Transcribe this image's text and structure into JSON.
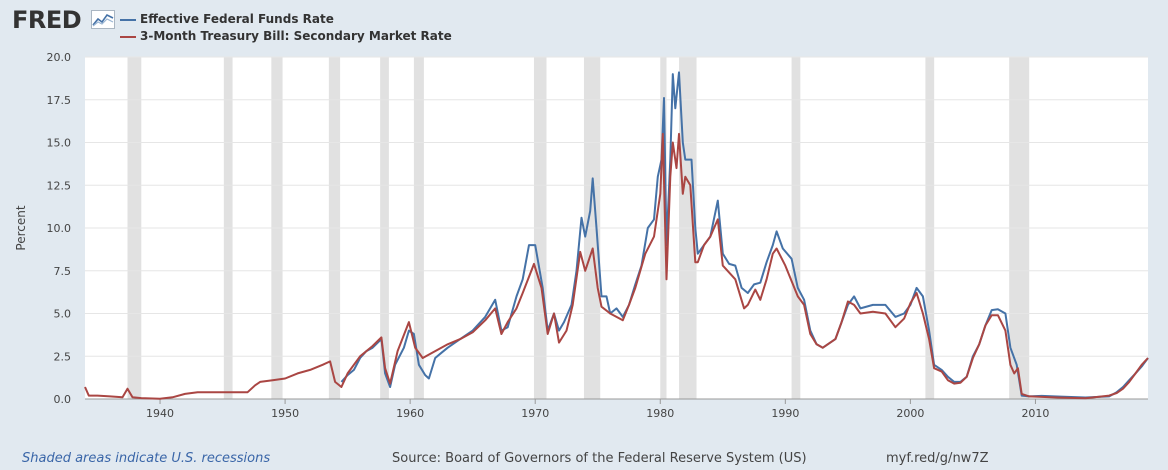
{
  "header": {
    "logo_text": "FRED",
    "logo_icon": "line-chart-icon"
  },
  "colors": {
    "series1": "#4572a7",
    "series2": "#aa4643",
    "recession": "#e1e1e1",
    "grid": "#e6e6e6",
    "background": "#e1e9f0"
  },
  "footer": {
    "note": "Shaded areas indicate U.S. recessions",
    "source": "Source: Board of Governors of the Federal Reserve System (US)",
    "link": "myf.red/g/nw7Z"
  },
  "chart_data": {
    "type": "line",
    "ylabel": "Percent",
    "ylim": [
      0,
      20
    ],
    "xlim": [
      1934,
      2019
    ],
    "y_ticks": [
      "0.0",
      "2.5",
      "5.0",
      "7.5",
      "10.0",
      "12.5",
      "15.0",
      "17.5",
      "20.0"
    ],
    "x_ticks": [
      "1940",
      "1950",
      "1960",
      "1970",
      "1980",
      "1990",
      "2000",
      "2010"
    ],
    "grid": true,
    "legend_position": "top-left",
    "recessions": [
      [
        1937.4,
        1938.5
      ],
      [
        1945.1,
        1945.8
      ],
      [
        1948.9,
        1949.8
      ],
      [
        1953.5,
        1954.4
      ],
      [
        1957.6,
        1958.3
      ],
      [
        1960.3,
        1961.1
      ],
      [
        1969.9,
        1970.9
      ],
      [
        1973.9,
        1975.2
      ],
      [
        1980.0,
        1980.5
      ],
      [
        1981.5,
        1982.9
      ],
      [
        1990.5,
        1991.2
      ],
      [
        2001.2,
        2001.9
      ],
      [
        2007.9,
        2009.5
      ]
    ],
    "series": [
      {
        "name": "Effective Federal Funds Rate",
        "points": [
          [
            1954.5,
            1.0
          ],
          [
            1955.0,
            1.4
          ],
          [
            1955.5,
            1.7
          ],
          [
            1956.0,
            2.4
          ],
          [
            1956.5,
            2.8
          ],
          [
            1957.0,
            3.0
          ],
          [
            1957.7,
            3.5
          ],
          [
            1958.0,
            1.5
          ],
          [
            1958.4,
            0.7
          ],
          [
            1958.8,
            2.0
          ],
          [
            1959.5,
            3.0
          ],
          [
            1959.9,
            4.0
          ],
          [
            1960.3,
            3.8
          ],
          [
            1960.7,
            2.0
          ],
          [
            1961.2,
            1.4
          ],
          [
            1961.5,
            1.2
          ],
          [
            1962.0,
            2.4
          ],
          [
            1962.5,
            2.7
          ],
          [
            1963.0,
            3.0
          ],
          [
            1964.0,
            3.5
          ],
          [
            1965.0,
            4.0
          ],
          [
            1966.0,
            4.8
          ],
          [
            1966.8,
            5.8
          ],
          [
            1967.3,
            4.0
          ],
          [
            1967.8,
            4.2
          ],
          [
            1968.5,
            6.0
          ],
          [
            1969.0,
            7.0
          ],
          [
            1969.5,
            9.0
          ],
          [
            1970.0,
            9.0
          ],
          [
            1970.6,
            6.5
          ],
          [
            1971.0,
            4.0
          ],
          [
            1971.5,
            5.0
          ],
          [
            1971.9,
            4.0
          ],
          [
            1972.3,
            4.5
          ],
          [
            1972.9,
            5.5
          ],
          [
            1973.3,
            7.5
          ],
          [
            1973.7,
            10.6
          ],
          [
            1974.0,
            9.5
          ],
          [
            1974.4,
            11.0
          ],
          [
            1974.6,
            12.9
          ],
          [
            1974.9,
            10.0
          ],
          [
            1975.3,
            6.0
          ],
          [
            1975.7,
            6.0
          ],
          [
            1976.0,
            5.0
          ],
          [
            1976.5,
            5.3
          ],
          [
            1977.0,
            4.8
          ],
          [
            1977.5,
            5.5
          ],
          [
            1978.0,
            6.7
          ],
          [
            1978.5,
            7.8
          ],
          [
            1979.0,
            10.0
          ],
          [
            1979.5,
            10.5
          ],
          [
            1979.8,
            13.0
          ],
          [
            1980.1,
            14.0
          ],
          [
            1980.3,
            17.6
          ],
          [
            1980.5,
            9.0
          ],
          [
            1980.8,
            14.0
          ],
          [
            1981.0,
            19.0
          ],
          [
            1981.2,
            17.0
          ],
          [
            1981.5,
            19.1
          ],
          [
            1981.8,
            15.0
          ],
          [
            1982.0,
            14.0
          ],
          [
            1982.5,
            14.0
          ],
          [
            1982.8,
            10.0
          ],
          [
            1983.0,
            8.5
          ],
          [
            1983.5,
            9.0
          ],
          [
            1984.0,
            9.5
          ],
          [
            1984.6,
            11.6
          ],
          [
            1985.0,
            8.5
          ],
          [
            1985.5,
            7.9
          ],
          [
            1986.0,
            7.8
          ],
          [
            1986.5,
            6.5
          ],
          [
            1987.0,
            6.2
          ],
          [
            1987.5,
            6.7
          ],
          [
            1988.0,
            6.8
          ],
          [
            1988.5,
            8.0
          ],
          [
            1989.0,
            9.0
          ],
          [
            1989.3,
            9.8
          ],
          [
            1989.8,
            8.8
          ],
          [
            1990.5,
            8.2
          ],
          [
            1991.0,
            6.5
          ],
          [
            1991.5,
            5.8
          ],
          [
            1992.0,
            4.0
          ],
          [
            1992.5,
            3.2
          ],
          [
            1993.0,
            3.0
          ],
          [
            1994.0,
            3.5
          ],
          [
            1994.5,
            4.5
          ],
          [
            1995.0,
            5.5
          ],
          [
            1995.5,
            6.0
          ],
          [
            1996.0,
            5.3
          ],
          [
            1997.0,
            5.5
          ],
          [
            1998.0,
            5.5
          ],
          [
            1998.8,
            4.8
          ],
          [
            1999.5,
            5.0
          ],
          [
            2000.0,
            5.5
          ],
          [
            2000.5,
            6.5
          ],
          [
            2001.0,
            6.0
          ],
          [
            2001.5,
            4.0
          ],
          [
            2001.9,
            2.0
          ],
          [
            2002.5,
            1.7
          ],
          [
            2003.0,
            1.3
          ],
          [
            2003.5,
            1.0
          ],
          [
            2004.0,
            1.0
          ],
          [
            2004.5,
            1.3
          ],
          [
            2005.0,
            2.5
          ],
          [
            2005.5,
            3.2
          ],
          [
            2006.0,
            4.3
          ],
          [
            2006.5,
            5.2
          ],
          [
            2007.0,
            5.25
          ],
          [
            2007.6,
            5.0
          ],
          [
            2008.0,
            3.0
          ],
          [
            2008.5,
            2.0
          ],
          [
            2008.9,
            0.2
          ],
          [
            2009.5,
            0.15
          ],
          [
            2010.5,
            0.18
          ],
          [
            2012.0,
            0.14
          ],
          [
            2014.0,
            0.09
          ],
          [
            2015.9,
            0.15
          ],
          [
            2016.5,
            0.4
          ],
          [
            2017.0,
            0.7
          ],
          [
            2017.5,
            1.1
          ],
          [
            2018.0,
            1.5
          ],
          [
            2018.5,
            1.9
          ],
          [
            2019.0,
            2.4
          ]
        ]
      },
      {
        "name": "3-Month Treasury Bill: Secondary Market Rate",
        "points": [
          [
            1934.0,
            0.7
          ],
          [
            1934.3,
            0.2
          ],
          [
            1935.0,
            0.2
          ],
          [
            1936.0,
            0.15
          ],
          [
            1937.0,
            0.1
          ],
          [
            1937.4,
            0.6
          ],
          [
            1937.8,
            0.1
          ],
          [
            1938.5,
            0.05
          ],
          [
            1940.0,
            0.02
          ],
          [
            1941.0,
            0.1
          ],
          [
            1942.0,
            0.3
          ],
          [
            1943.0,
            0.4
          ],
          [
            1947.0,
            0.4
          ],
          [
            1947.6,
            0.8
          ],
          [
            1948.0,
            1.0
          ],
          [
            1949.0,
            1.1
          ],
          [
            1950.0,
            1.2
          ],
          [
            1951.0,
            1.5
          ],
          [
            1952.0,
            1.7
          ],
          [
            1953.0,
            2.0
          ],
          [
            1953.6,
            2.2
          ],
          [
            1954.0,
            1.0
          ],
          [
            1954.5,
            0.7
          ],
          [
            1955.0,
            1.5
          ],
          [
            1956.0,
            2.5
          ],
          [
            1957.0,
            3.1
          ],
          [
            1957.7,
            3.6
          ],
          [
            1958.0,
            1.8
          ],
          [
            1958.4,
            0.9
          ],
          [
            1959.0,
            2.8
          ],
          [
            1959.9,
            4.5
          ],
          [
            1960.4,
            3.0
          ],
          [
            1961.0,
            2.4
          ],
          [
            1962.0,
            2.8
          ],
          [
            1963.0,
            3.2
          ],
          [
            1964.0,
            3.5
          ],
          [
            1965.0,
            3.9
          ],
          [
            1966.0,
            4.6
          ],
          [
            1966.8,
            5.3
          ],
          [
            1967.3,
            3.8
          ],
          [
            1967.8,
            4.5
          ],
          [
            1968.5,
            5.3
          ],
          [
            1969.0,
            6.2
          ],
          [
            1969.9,
            7.9
          ],
          [
            1970.5,
            6.5
          ],
          [
            1971.0,
            3.8
          ],
          [
            1971.5,
            5.0
          ],
          [
            1971.9,
            3.3
          ],
          [
            1972.5,
            4.0
          ],
          [
            1973.0,
            5.5
          ],
          [
            1973.6,
            8.6
          ],
          [
            1974.0,
            7.5
          ],
          [
            1974.6,
            8.8
          ],
          [
            1975.0,
            6.5
          ],
          [
            1975.3,
            5.4
          ],
          [
            1976.0,
            5.0
          ],
          [
            1977.0,
            4.6
          ],
          [
            1977.5,
            5.5
          ],
          [
            1978.0,
            6.5
          ],
          [
            1978.8,
            8.5
          ],
          [
            1979.5,
            9.5
          ],
          [
            1980.0,
            12.0
          ],
          [
            1980.2,
            15.5
          ],
          [
            1980.5,
            7.0
          ],
          [
            1980.8,
            13.0
          ],
          [
            1981.0,
            15.0
          ],
          [
            1981.3,
            13.5
          ],
          [
            1981.5,
            15.5
          ],
          [
            1981.8,
            12.0
          ],
          [
            1982.0,
            13.0
          ],
          [
            1982.4,
            12.5
          ],
          [
            1982.8,
            8.0
          ],
          [
            1983.0,
            8.0
          ],
          [
            1983.5,
            9.0
          ],
          [
            1984.0,
            9.5
          ],
          [
            1984.6,
            10.5
          ],
          [
            1985.0,
            7.8
          ],
          [
            1986.0,
            7.0
          ],
          [
            1986.7,
            5.3
          ],
          [
            1987.0,
            5.5
          ],
          [
            1987.6,
            6.4
          ],
          [
            1988.0,
            5.8
          ],
          [
            1988.5,
            7.0
          ],
          [
            1989.0,
            8.5
          ],
          [
            1989.3,
            8.8
          ],
          [
            1990.0,
            7.8
          ],
          [
            1991.0,
            6.0
          ],
          [
            1991.5,
            5.5
          ],
          [
            1992.0,
            3.8
          ],
          [
            1992.5,
            3.2
          ],
          [
            1993.0,
            3.0
          ],
          [
            1994.0,
            3.5
          ],
          [
            1994.5,
            4.5
          ],
          [
            1995.0,
            5.7
          ],
          [
            1995.5,
            5.5
          ],
          [
            1996.0,
            5.0
          ],
          [
            1997.0,
            5.1
          ],
          [
            1998.0,
            5.0
          ],
          [
            1998.8,
            4.2
          ],
          [
            1999.5,
            4.7
          ],
          [
            2000.0,
            5.6
          ],
          [
            2000.5,
            6.2
          ],
          [
            2001.0,
            5.0
          ],
          [
            2001.5,
            3.5
          ],
          [
            2001.9,
            1.8
          ],
          [
            2002.5,
            1.6
          ],
          [
            2003.0,
            1.1
          ],
          [
            2003.5,
            0.9
          ],
          [
            2004.0,
            0.95
          ],
          [
            2004.5,
            1.3
          ],
          [
            2005.0,
            2.4
          ],
          [
            2005.5,
            3.2
          ],
          [
            2006.0,
            4.3
          ],
          [
            2006.5,
            4.9
          ],
          [
            2007.0,
            4.9
          ],
          [
            2007.6,
            4.0
          ],
          [
            2008.0,
            2.0
          ],
          [
            2008.3,
            1.5
          ],
          [
            2008.6,
            1.8
          ],
          [
            2008.9,
            0.3
          ],
          [
            2009.5,
            0.15
          ],
          [
            2010.5,
            0.12
          ],
          [
            2012.0,
            0.08
          ],
          [
            2014.0,
            0.04
          ],
          [
            2015.9,
            0.2
          ],
          [
            2016.5,
            0.35
          ],
          [
            2017.0,
            0.6
          ],
          [
            2017.5,
            1.0
          ],
          [
            2018.0,
            1.5
          ],
          [
            2018.5,
            2.0
          ],
          [
            2019.0,
            2.4
          ]
        ]
      }
    ]
  }
}
